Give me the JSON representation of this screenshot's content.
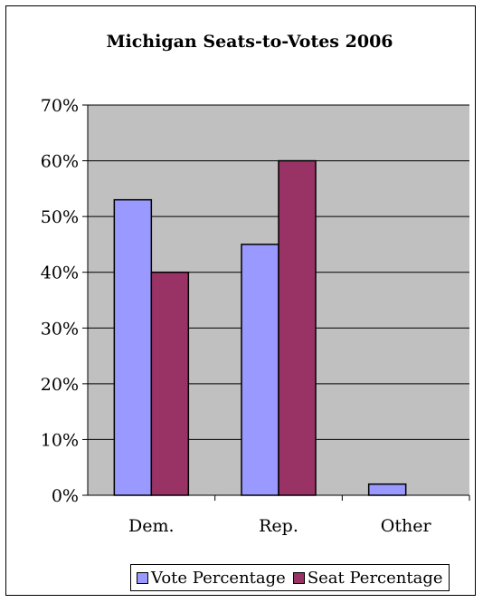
{
  "chart_data": {
    "type": "bar",
    "title": "Michigan Seats-to-Votes 2006",
    "categories": [
      "Dem.",
      "Rep.",
      "Other"
    ],
    "series": [
      {
        "name": "Vote Percentage",
        "values": [
          53,
          45,
          2
        ],
        "color": "#9999ff"
      },
      {
        "name": "Seat Percentage",
        "values": [
          40,
          60,
          0
        ],
        "color": "#993366"
      }
    ],
    "ylim": [
      0,
      70
    ],
    "yticks": [
      "0%",
      "10%",
      "20%",
      "30%",
      "40%",
      "50%",
      "60%",
      "70%"
    ],
    "grid": true,
    "plot_background": "#c0c0c0",
    "legend_position": "bottom"
  }
}
